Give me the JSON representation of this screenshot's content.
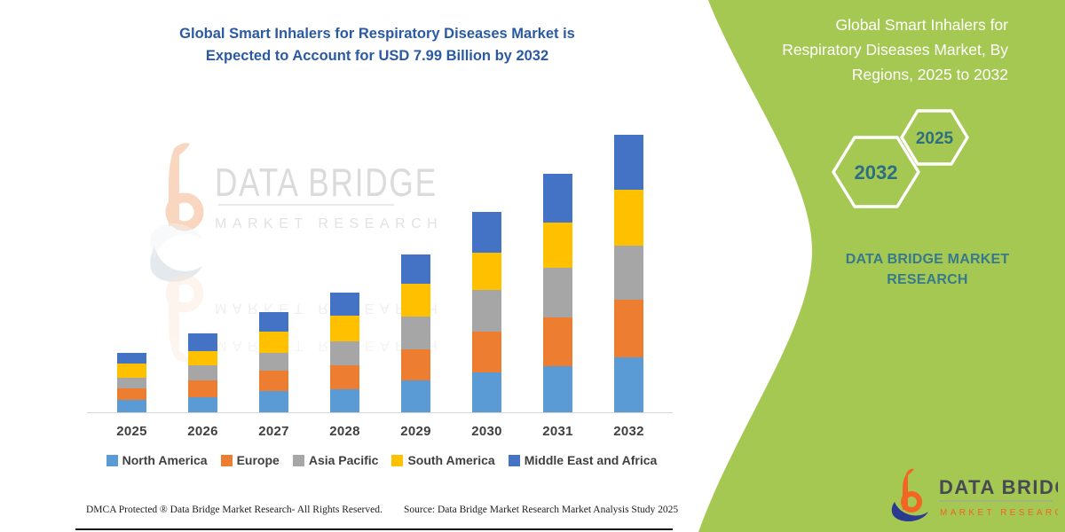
{
  "left": {
    "title_line1": "Global Smart Inhalers for Respiratory Diseases Market is",
    "title_line2": "Expected to Account for USD 7.99 Billion by 2032",
    "footer_left": "DMCA Protected ® Data Bridge Market Research-  All Rights Reserved.",
    "footer_source": "Source: Data Bridge Market Research  Market Analysis Study 2025"
  },
  "watermark": {
    "brand": "DATA BRIDGE",
    "sub": "MARKET RESEARCH"
  },
  "chart_data": {
    "type": "bar",
    "stacked": true,
    "title": "Global Smart Inhalers for Respiratory Diseases Market is Expected to Account for USD 7.99 Billion by 2032",
    "unit": "USD Billion",
    "categories": [
      "2025",
      "2026",
      "2027",
      "2028",
      "2029",
      "2030",
      "2031",
      "2032"
    ],
    "series": [
      {
        "name": "North America",
        "color": "#5B9BD5",
        "values": [
          0.37,
          0.43,
          0.62,
          0.67,
          0.91,
          1.16,
          1.33,
          1.59
        ]
      },
      {
        "name": "Europe",
        "color": "#ED7D31",
        "values": [
          0.32,
          0.5,
          0.58,
          0.67,
          0.9,
          1.16,
          1.41,
          1.64
        ]
      },
      {
        "name": "Asia Pacific",
        "color": "#A6A6A6",
        "values": [
          0.31,
          0.43,
          0.51,
          0.69,
          0.94,
          1.2,
          1.41,
          1.57
        ]
      },
      {
        "name": "South America",
        "color": "#FFC000",
        "values": [
          0.4,
          0.41,
          0.62,
          0.75,
          0.94,
          1.07,
          1.32,
          1.6
        ]
      },
      {
        "name": "Middle East and Africa",
        "color": "#4472C4",
        "values": [
          0.32,
          0.51,
          0.56,
          0.66,
          0.86,
          1.17,
          1.4,
          1.59
        ]
      }
    ],
    "totals": [
      1.72,
      2.28,
      2.89,
      3.44,
      4.55,
      5.76,
      6.87,
      7.99
    ],
    "xlabel": "",
    "ylabel": "",
    "ylim": [
      0,
      8.8
    ],
    "gridlines": false,
    "y_axis_visible": false,
    "legend_position": "bottom"
  },
  "right_panel": {
    "background_color": "#A5C853",
    "title_lines": [
      "Global Smart Inhalers for",
      "Respiratory Diseases Market, By",
      "Regions, 2025 to 2032"
    ],
    "hexagons": [
      {
        "label": "2032"
      },
      {
        "label": "2025"
      }
    ],
    "brand_line1": "DATA BRIDGE MARKET",
    "brand_line2": "RESEARCH",
    "logo": {
      "name": "DATA BRIDGE",
      "sub": "MARKET RESEARCH"
    }
  }
}
